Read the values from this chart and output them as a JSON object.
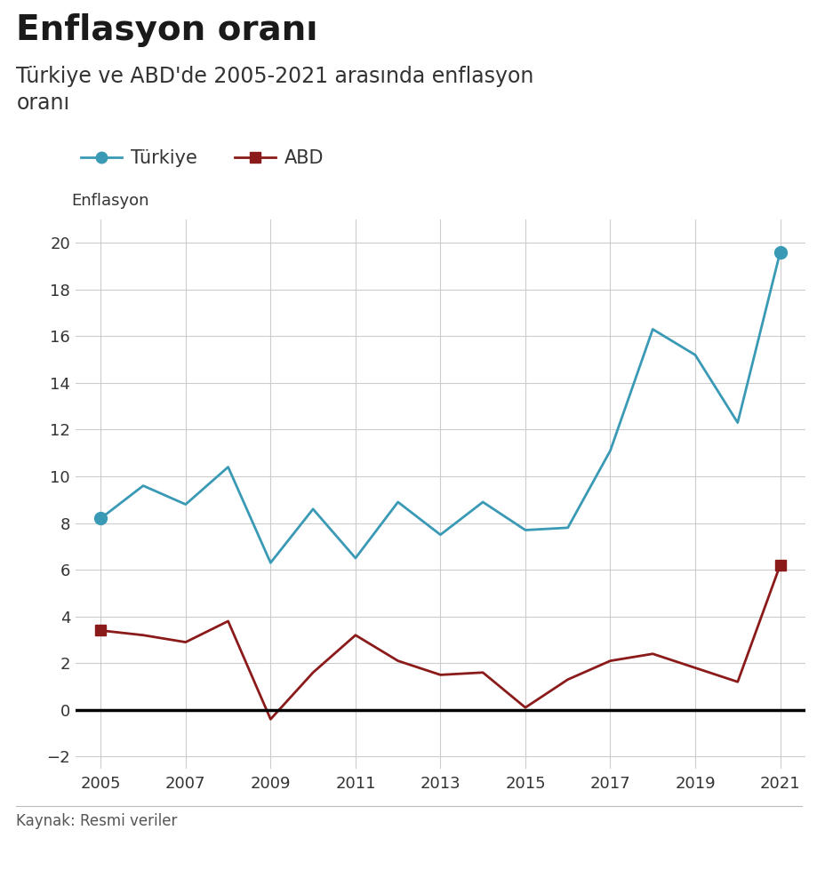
{
  "title": "Enflasyon oranı",
  "subtitle": "Türkiye ve ABD'de 2005-2021 arasında enflasyon\noranı",
  "ylabel": "Enflasyon",
  "source": "Kaynak: Resmi veriler",
  "years": [
    2005,
    2006,
    2007,
    2008,
    2009,
    2010,
    2011,
    2012,
    2013,
    2014,
    2015,
    2016,
    2017,
    2018,
    2019,
    2020,
    2021
  ],
  "turkey": [
    8.2,
    9.6,
    8.8,
    10.4,
    6.3,
    8.6,
    6.5,
    8.9,
    7.5,
    8.9,
    7.7,
    7.8,
    11.1,
    16.3,
    15.2,
    12.3,
    19.6
  ],
  "usa": [
    3.4,
    3.2,
    2.9,
    3.8,
    -0.4,
    1.6,
    3.2,
    2.1,
    1.5,
    1.6,
    0.1,
    1.3,
    2.1,
    2.4,
    1.8,
    1.2,
    6.2
  ],
  "turkey_color": "#3a9ab5",
  "usa_color": "#8b1a1a",
  "turkey_label": "Türkiye",
  "usa_label": "ABD",
  "ylim": [
    -2.5,
    21
  ],
  "yticks": [
    -2,
    0,
    2,
    4,
    6,
    8,
    10,
    12,
    14,
    16,
    18,
    20
  ],
  "xticks": [
    2005,
    2007,
    2009,
    2011,
    2013,
    2015,
    2017,
    2019,
    2021
  ],
  "background_color": "#ffffff",
  "grid_color": "#cccccc",
  "title_fontsize": 28,
  "subtitle_fontsize": 17,
  "axis_label_fontsize": 13,
  "tick_fontsize": 13,
  "legend_fontsize": 15
}
